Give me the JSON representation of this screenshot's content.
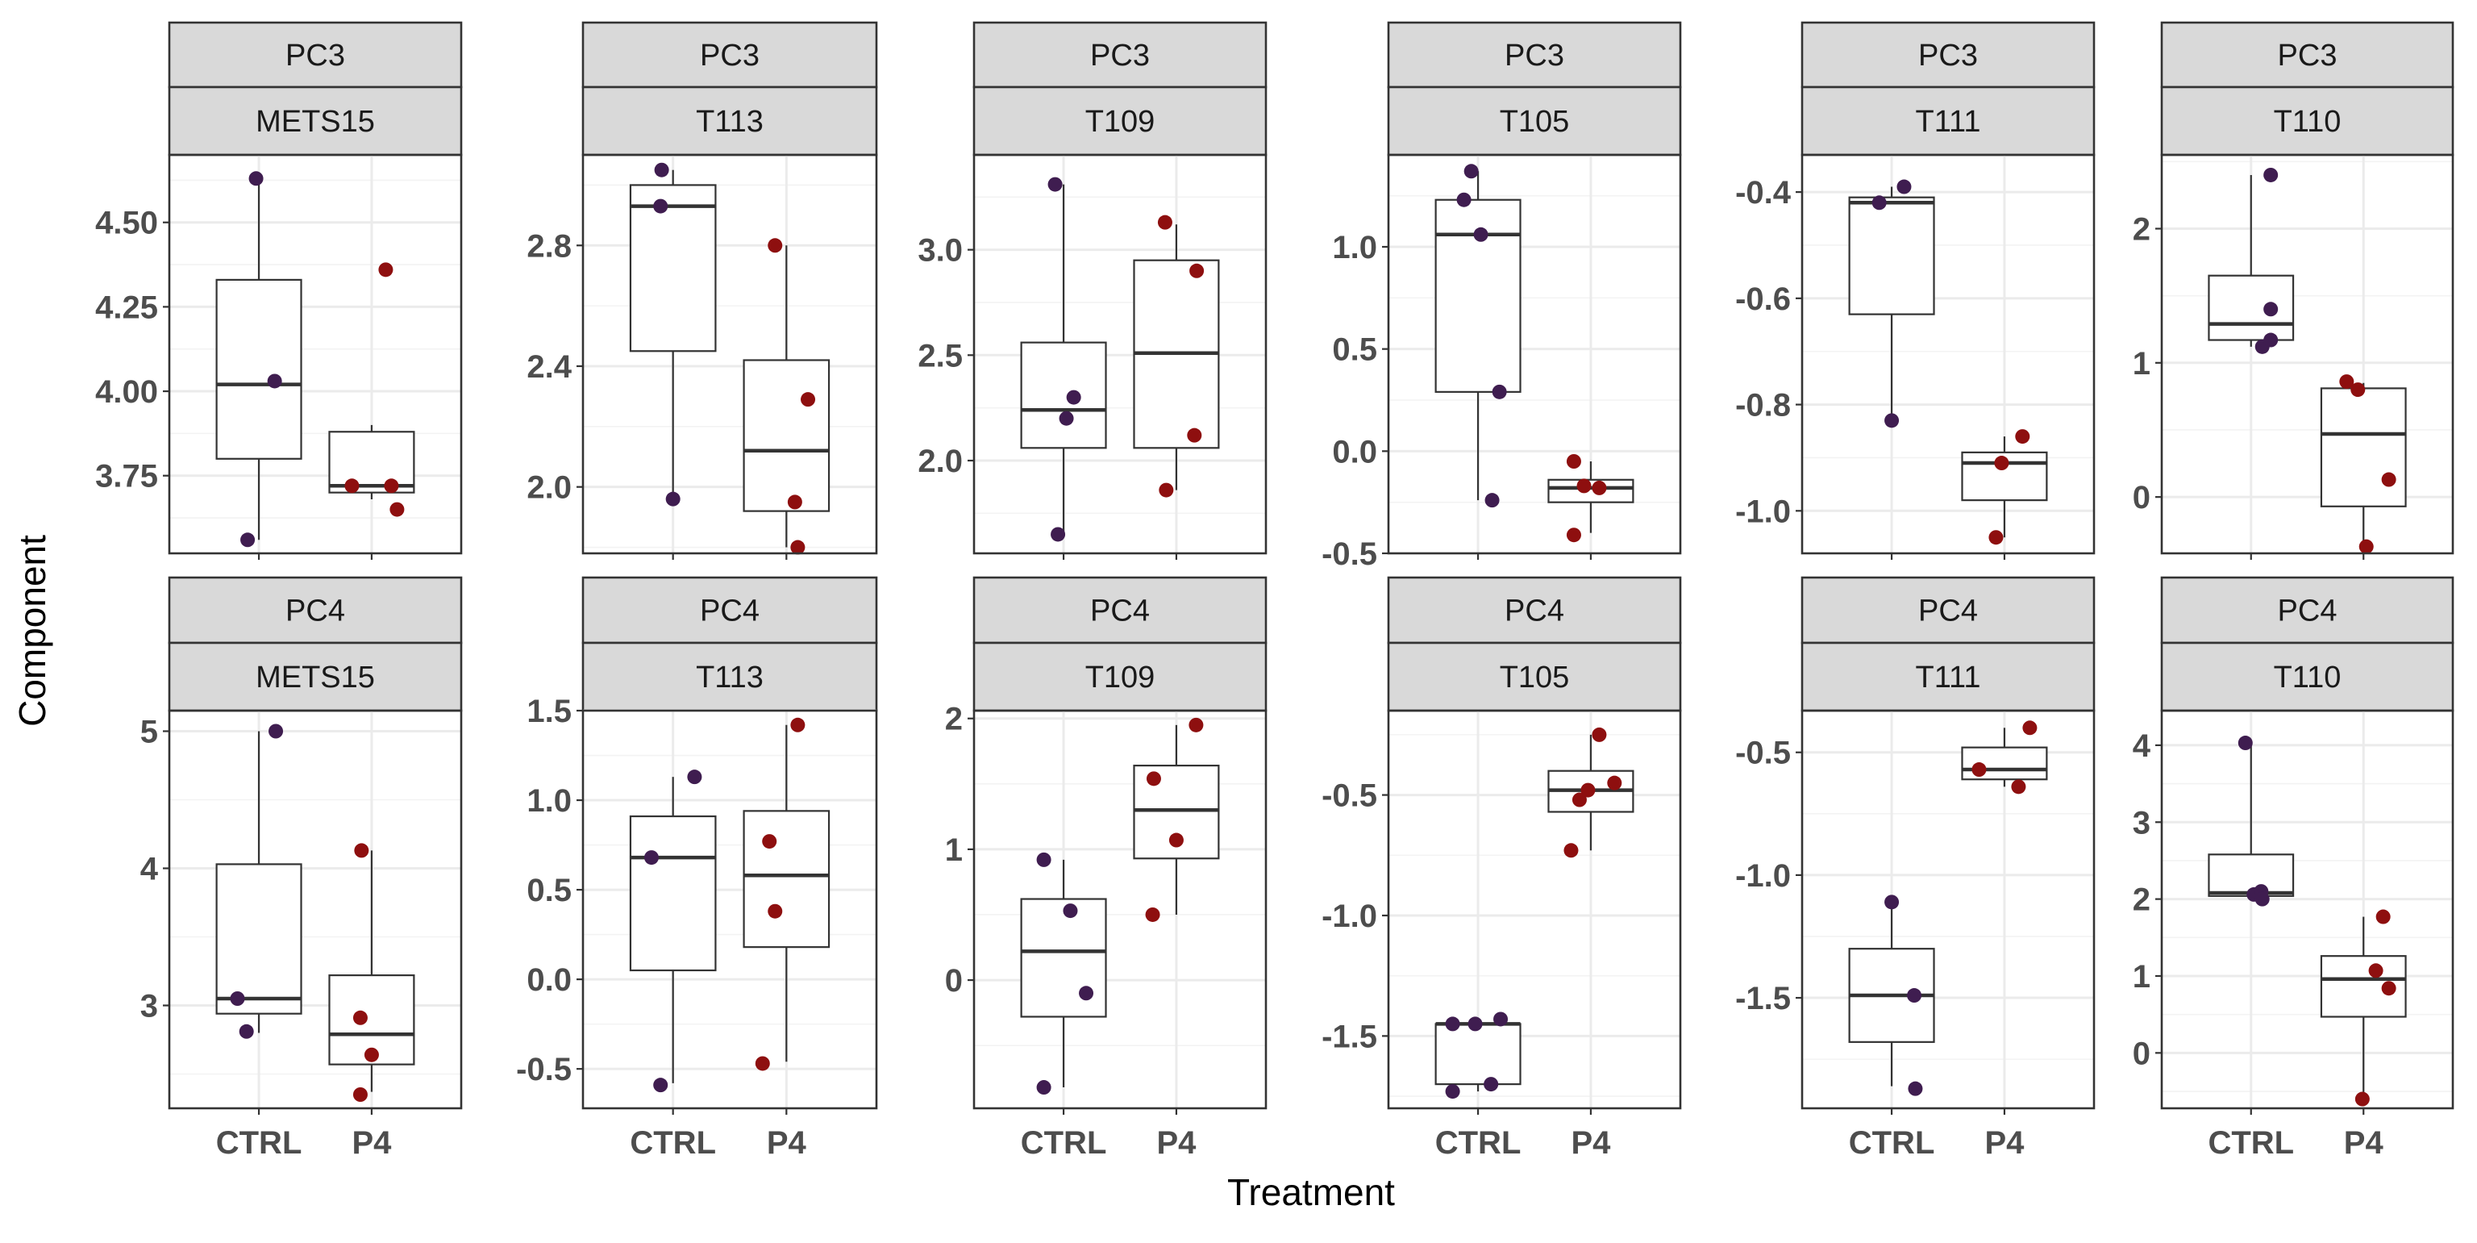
{
  "chart_data": {
    "type": "boxplot",
    "xlabel": "Treatment",
    "ylabel": "Component",
    "categories": [
      "CTRL",
      "P4"
    ],
    "colors": {
      "CTRL": "#3f1d50",
      "P4": "#8e0f0f"
    },
    "panels": [
      {
        "component": "PC3",
        "sample": "METS15",
        "ylim": [
          3.52,
          4.7
        ],
        "ticks": [
          3.75,
          4.0,
          4.25,
          4.5
        ],
        "tick_labels": [
          "3.75",
          "4.00",
          "4.25",
          "4.50"
        ],
        "boxes": [
          {
            "group": "CTRL",
            "q1": 3.8,
            "median": 4.02,
            "q3": 4.33,
            "lower": 3.56,
            "upper": 4.63
          },
          {
            "group": "P4",
            "q1": 3.7,
            "median": 3.72,
            "q3": 3.88,
            "lower": 3.68,
            "upper": 3.9
          }
        ],
        "points": [
          {
            "group": "CTRL",
            "dx": -0.2,
            "y": 3.56
          },
          {
            "group": "CTRL",
            "dx": -0.05,
            "y": 4.63
          },
          {
            "group": "CTRL",
            "dx": 0.28,
            "y": 4.03
          },
          {
            "group": "P4",
            "dx": -0.35,
            "y": 3.72
          },
          {
            "group": "P4",
            "dx": 0.25,
            "y": 4.36
          },
          {
            "group": "P4",
            "dx": 0.35,
            "y": 3.72
          },
          {
            "group": "P4",
            "dx": 0.45,
            "y": 3.65
          }
        ]
      },
      {
        "component": "PC3",
        "sample": "T113",
        "ylim": [
          1.78,
          3.1
        ],
        "ticks": [
          2.0,
          2.4,
          2.8
        ],
        "tick_labels": [
          "2.0",
          "2.4",
          "2.8"
        ],
        "boxes": [
          {
            "group": "CTRL",
            "q1": 2.45,
            "median": 2.93,
            "q3": 3.0,
            "lower": 1.96,
            "upper": 3.05
          },
          {
            "group": "P4",
            "q1": 1.92,
            "median": 2.12,
            "q3": 2.42,
            "lower": 1.8,
            "upper": 2.8
          }
        ],
        "points": [
          {
            "group": "CTRL",
            "dx": -0.2,
            "y": 3.05
          },
          {
            "group": "CTRL",
            "dx": -0.22,
            "y": 2.93
          },
          {
            "group": "CTRL",
            "dx": 0.0,
            "y": 1.96
          },
          {
            "group": "P4",
            "dx": -0.2,
            "y": 2.8
          },
          {
            "group": "P4",
            "dx": 0.15,
            "y": 1.95
          },
          {
            "group": "P4",
            "dx": 0.38,
            "y": 2.29
          },
          {
            "group": "P4",
            "dx": 0.2,
            "y": 1.8
          }
        ]
      },
      {
        "component": "PC3",
        "sample": "T109",
        "ylim": [
          1.56,
          3.45
        ],
        "ticks": [
          2.0,
          2.5,
          3.0
        ],
        "tick_labels": [
          "2.0",
          "2.5",
          "3.0"
        ],
        "boxes": [
          {
            "group": "CTRL",
            "q1": 2.06,
            "median": 2.24,
            "q3": 2.56,
            "lower": 1.65,
            "upper": 3.31
          },
          {
            "group": "P4",
            "q1": 2.06,
            "median": 2.51,
            "q3": 2.95,
            "lower": 1.86,
            "upper": 3.12
          }
        ],
        "points": [
          {
            "group": "CTRL",
            "dx": -0.15,
            "y": 3.31
          },
          {
            "group": "CTRL",
            "dx": 0.05,
            "y": 2.2
          },
          {
            "group": "CTRL",
            "dx": 0.18,
            "y": 2.3
          },
          {
            "group": "CTRL",
            "dx": -0.1,
            "y": 1.65
          },
          {
            "group": "P4",
            "dx": -0.2,
            "y": 3.13
          },
          {
            "group": "P4",
            "dx": -0.18,
            "y": 1.86
          },
          {
            "group": "P4",
            "dx": 0.36,
            "y": 2.9
          },
          {
            "group": "P4",
            "dx": 0.32,
            "y": 2.12
          }
        ]
      },
      {
        "component": "PC3",
        "sample": "T105",
        "ylim": [
          -0.5,
          1.45
        ],
        "ticks": [
          -0.5,
          0.0,
          0.5,
          1.0
        ],
        "tick_labels": [
          "-0.5",
          "0.0",
          "0.5",
          "1.0"
        ],
        "boxes": [
          {
            "group": "CTRL",
            "q1": 0.29,
            "median": 1.06,
            "q3": 1.23,
            "lower": -0.24,
            "upper": 1.37
          },
          {
            "group": "P4",
            "q1": -0.25,
            "median": -0.18,
            "q3": -0.14,
            "lower": -0.4,
            "upper": -0.05
          }
        ],
        "points": [
          {
            "group": "CTRL",
            "dx": -0.25,
            "y": 1.23
          },
          {
            "group": "CTRL",
            "dx": -0.12,
            "y": 1.37
          },
          {
            "group": "CTRL",
            "dx": 0.05,
            "y": 1.06
          },
          {
            "group": "CTRL",
            "dx": 0.25,
            "y": -0.24
          },
          {
            "group": "CTRL",
            "dx": 0.38,
            "y": 0.29
          },
          {
            "group": "P4",
            "dx": -0.3,
            "y": -0.05
          },
          {
            "group": "P4",
            "dx": -0.3,
            "y": -0.41
          },
          {
            "group": "P4",
            "dx": -0.12,
            "y": -0.17
          },
          {
            "group": "P4",
            "dx": 0.15,
            "y": -0.18
          }
        ]
      },
      {
        "component": "PC3",
        "sample": "T111",
        "ylim": [
          -1.08,
          -0.33
        ],
        "ticks": [
          -1.0,
          -0.8,
          -0.6,
          -0.4
        ],
        "tick_labels": [
          "-1.0",
          "-0.8",
          "-0.6",
          "-0.4"
        ],
        "boxes": [
          {
            "group": "CTRL",
            "q1": -0.63,
            "median": -0.42,
            "q3": -0.41,
            "lower": -0.83,
            "upper": -0.39
          },
          {
            "group": "P4",
            "q1": -0.98,
            "median": -0.91,
            "q3": -0.89,
            "lower": -1.05,
            "upper": -0.86
          }
        ],
        "points": [
          {
            "group": "CTRL",
            "dx": -0.22,
            "y": -0.42
          },
          {
            "group": "CTRL",
            "dx": 0.0,
            "y": -0.83
          },
          {
            "group": "CTRL",
            "dx": 0.22,
            "y": -0.39
          },
          {
            "group": "P4",
            "dx": -0.05,
            "y": -0.91
          },
          {
            "group": "P4",
            "dx": -0.15,
            "y": -1.05
          },
          {
            "group": "P4",
            "dx": 0.32,
            "y": -0.86
          }
        ]
      },
      {
        "component": "PC3",
        "sample": "T110",
        "ylim": [
          -0.42,
          2.55
        ],
        "ticks": [
          0,
          1,
          2
        ],
        "tick_labels": [
          "0",
          "1",
          "2"
        ],
        "boxes": [
          {
            "group": "CTRL",
            "q1": 1.17,
            "median": 1.29,
            "q3": 1.65,
            "lower": 1.12,
            "upper": 2.4
          },
          {
            "group": "P4",
            "q1": -0.07,
            "median": 0.47,
            "q3": 0.81,
            "lower": -0.37,
            "upper": 0.85
          }
        ],
        "points": [
          {
            "group": "CTRL",
            "dx": 0.2,
            "y": 1.12
          },
          {
            "group": "CTRL",
            "dx": 0.35,
            "y": 1.17
          },
          {
            "group": "CTRL",
            "dx": 0.35,
            "y": 1.4
          },
          {
            "group": "CTRL",
            "dx": 0.35,
            "y": 2.4
          },
          {
            "group": "P4",
            "dx": -0.3,
            "y": 0.86
          },
          {
            "group": "P4",
            "dx": -0.1,
            "y": 0.8
          },
          {
            "group": "P4",
            "dx": 0.05,
            "y": -0.37
          },
          {
            "group": "P4",
            "dx": 0.45,
            "y": 0.13
          }
        ]
      },
      {
        "component": "PC4",
        "sample": "METS15",
        "ylim": [
          2.25,
          5.15
        ],
        "ticks": [
          3,
          4,
          5
        ],
        "tick_labels": [
          "3",
          "4",
          "5"
        ],
        "boxes": [
          {
            "group": "CTRL",
            "q1": 2.94,
            "median": 3.05,
            "q3": 4.03,
            "lower": 2.8,
            "upper": 5.0
          },
          {
            "group": "P4",
            "q1": 2.57,
            "median": 2.79,
            "q3": 3.22,
            "lower": 2.37,
            "upper": 4.13
          }
        ],
        "points": [
          {
            "group": "CTRL",
            "dx": -0.38,
            "y": 3.05
          },
          {
            "group": "CTRL",
            "dx": -0.22,
            "y": 2.81
          },
          {
            "group": "CTRL",
            "dx": 0.3,
            "y": 5.0
          },
          {
            "group": "P4",
            "dx": -0.2,
            "y": 2.35
          },
          {
            "group": "P4",
            "dx": -0.2,
            "y": 2.91
          },
          {
            "group": "P4",
            "dx": -0.18,
            "y": 4.13
          },
          {
            "group": "P4",
            "dx": 0.0,
            "y": 2.64
          }
        ]
      },
      {
        "component": "PC4",
        "sample": "T113",
        "ylim": [
          -0.72,
          1.5
        ],
        "ticks": [
          -0.5,
          0.0,
          0.5,
          1.0,
          1.5
        ],
        "tick_labels": [
          "-0.5",
          "0.0",
          "0.5",
          "1.0",
          "1.5"
        ],
        "boxes": [
          {
            "group": "CTRL",
            "q1": 0.05,
            "median": 0.68,
            "q3": 0.91,
            "lower": -0.58,
            "upper": 1.13
          },
          {
            "group": "P4",
            "q1": 0.18,
            "median": 0.58,
            "q3": 0.94,
            "lower": -0.46,
            "upper": 1.42
          }
        ],
        "points": [
          {
            "group": "CTRL",
            "dx": -0.38,
            "y": 0.68
          },
          {
            "group": "CTRL",
            "dx": -0.22,
            "y": -0.59
          },
          {
            "group": "CTRL",
            "dx": 0.38,
            "y": 1.13
          },
          {
            "group": "P4",
            "dx": -0.42,
            "y": -0.47
          },
          {
            "group": "P4",
            "dx": -0.3,
            "y": 0.77
          },
          {
            "group": "P4",
            "dx": -0.2,
            "y": 0.38
          },
          {
            "group": "P4",
            "dx": 0.2,
            "y": 1.42
          }
        ]
      },
      {
        "component": "PC4",
        "sample": "T109",
        "ylim": [
          -0.98,
          2.06
        ],
        "ticks": [
          0,
          1,
          2
        ],
        "tick_labels": [
          "0",
          "1",
          "2"
        ],
        "boxes": [
          {
            "group": "CTRL",
            "q1": -0.28,
            "median": 0.22,
            "q3": 0.62,
            "lower": -0.82,
            "upper": 0.92
          },
          {
            "group": "P4",
            "q1": 0.93,
            "median": 1.3,
            "q3": 1.64,
            "lower": 0.5,
            "upper": 1.95
          }
        ],
        "points": [
          {
            "group": "CTRL",
            "dx": -0.35,
            "y": 0.92
          },
          {
            "group": "CTRL",
            "dx": -0.35,
            "y": -0.82
          },
          {
            "group": "CTRL",
            "dx": 0.12,
            "y": 0.53
          },
          {
            "group": "CTRL",
            "dx": 0.4,
            "y": -0.1
          },
          {
            "group": "P4",
            "dx": -0.4,
            "y": 1.54
          },
          {
            "group": "P4",
            "dx": -0.42,
            "y": 0.5
          },
          {
            "group": "P4",
            "dx": 0.0,
            "y": 1.07
          },
          {
            "group": "P4",
            "dx": 0.35,
            "y": 1.95
          }
        ]
      },
      {
        "component": "PC4",
        "sample": "T105",
        "ylim": [
          -1.8,
          -0.15
        ],
        "ticks": [
          -1.5,
          -1.0,
          -0.5
        ],
        "tick_labels": [
          "-1.5",
          "-1.0",
          "-0.5"
        ],
        "boxes": [
          {
            "group": "CTRL",
            "q1": -1.7,
            "median": -1.45,
            "q3": -1.45,
            "lower": -1.73,
            "upper": -1.43
          },
          {
            "group": "P4",
            "q1": -0.57,
            "median": -0.48,
            "q3": -0.4,
            "lower": -0.73,
            "upper": -0.25
          }
        ],
        "points": [
          {
            "group": "CTRL",
            "dx": -0.45,
            "y": -1.45
          },
          {
            "group": "CTRL",
            "dx": -0.45,
            "y": -1.73
          },
          {
            "group": "CTRL",
            "dx": -0.05,
            "y": -1.45
          },
          {
            "group": "CTRL",
            "dx": 0.23,
            "y": -1.7
          },
          {
            "group": "CTRL",
            "dx": 0.4,
            "y": -1.43
          },
          {
            "group": "P4",
            "dx": -0.35,
            "y": -0.73
          },
          {
            "group": "P4",
            "dx": -0.2,
            "y": -0.52
          },
          {
            "group": "P4",
            "dx": -0.05,
            "y": -0.48
          },
          {
            "group": "P4",
            "dx": 0.15,
            "y": -0.25
          },
          {
            "group": "P4",
            "dx": 0.42,
            "y": -0.45
          }
        ]
      },
      {
        "component": "PC4",
        "sample": "T111",
        "ylim": [
          -1.95,
          -0.33
        ],
        "ticks": [
          -1.5,
          -1.0,
          -0.5
        ],
        "tick_labels": [
          "-1.5",
          "-1.0",
          "-0.5"
        ],
        "boxes": [
          {
            "group": "CTRL",
            "q1": -1.68,
            "median": -1.49,
            "q3": -1.3,
            "lower": -1.86,
            "upper": -1.11
          },
          {
            "group": "P4",
            "q1": -0.61,
            "median": -0.57,
            "q3": -0.48,
            "lower": -0.64,
            "upper": -0.4
          }
        ],
        "points": [
          {
            "group": "CTRL",
            "dx": 0.0,
            "y": -1.11
          },
          {
            "group": "CTRL",
            "dx": 0.4,
            "y": -1.49
          },
          {
            "group": "CTRL",
            "dx": 0.42,
            "y": -1.87
          },
          {
            "group": "P4",
            "dx": -0.45,
            "y": -0.57
          },
          {
            "group": "P4",
            "dx": 0.25,
            "y": -0.64
          },
          {
            "group": "P4",
            "dx": 0.45,
            "y": -0.4
          }
        ]
      },
      {
        "component": "PC4",
        "sample": "T110",
        "ylim": [
          -0.72,
          4.45
        ],
        "ticks": [
          0,
          1,
          2,
          3,
          4
        ],
        "tick_labels": [
          "0",
          "1",
          "2",
          "3",
          "4"
        ],
        "boxes": [
          {
            "group": "CTRL",
            "q1": 2.04,
            "median": 2.08,
            "q3": 2.58,
            "lower": 2.0,
            "upper": 4.03
          },
          {
            "group": "P4",
            "q1": 0.47,
            "median": 0.96,
            "q3": 1.26,
            "lower": -0.6,
            "upper": 1.77
          }
        ],
        "points": [
          {
            "group": "CTRL",
            "dx": -0.1,
            "y": 4.03
          },
          {
            "group": "CTRL",
            "dx": 0.05,
            "y": 2.06
          },
          {
            "group": "CTRL",
            "dx": 0.18,
            "y": 2.1
          },
          {
            "group": "CTRL",
            "dx": 0.2,
            "y": 2.0
          },
          {
            "group": "P4",
            "dx": -0.02,
            "y": -0.6
          },
          {
            "group": "P4",
            "dx": 0.22,
            "y": 1.07
          },
          {
            "group": "P4",
            "dx": 0.35,
            "y": 1.77
          },
          {
            "group": "P4",
            "dx": 0.45,
            "y": 0.84
          }
        ]
      }
    ]
  }
}
